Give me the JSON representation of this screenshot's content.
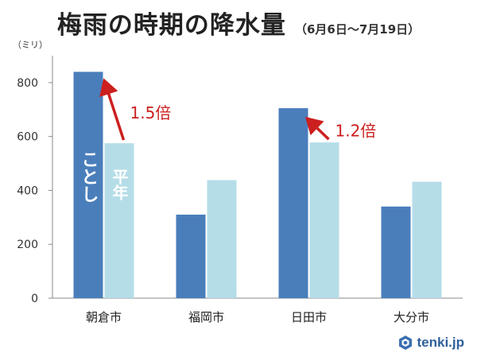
{
  "header": {
    "title": "梅雨の時期の降水量",
    "subtitle": "（6月6日〜7月19日）"
  },
  "chart_data": {
    "type": "bar",
    "y_unit": "（ミリ）",
    "ylim": [
      0,
      900
    ],
    "yticks": [
      0,
      200,
      400,
      600,
      800
    ],
    "grid": false,
    "categories": [
      "朝倉市",
      "福岡市",
      "日田市",
      "大分市"
    ],
    "series": [
      {
        "name": "ことし",
        "color": "#4a7ebb",
        "values": [
          840,
          310,
          705,
          340
        ]
      },
      {
        "name": "平年",
        "color": "#b5dde8",
        "values": [
          575,
          438,
          578,
          432
        ]
      }
    ],
    "annotations": [
      {
        "text": "1.5倍",
        "category_index": 0,
        "color": "#cc1f1f"
      },
      {
        "text": "1.2倍",
        "category_index": 2,
        "color": "#cc1f1f"
      }
    ],
    "series_labels": {
      "this_year": "ことし",
      "normal": "平年"
    }
  },
  "brand": {
    "name": "tenki.jp",
    "icon": "tenki-logo-icon"
  }
}
